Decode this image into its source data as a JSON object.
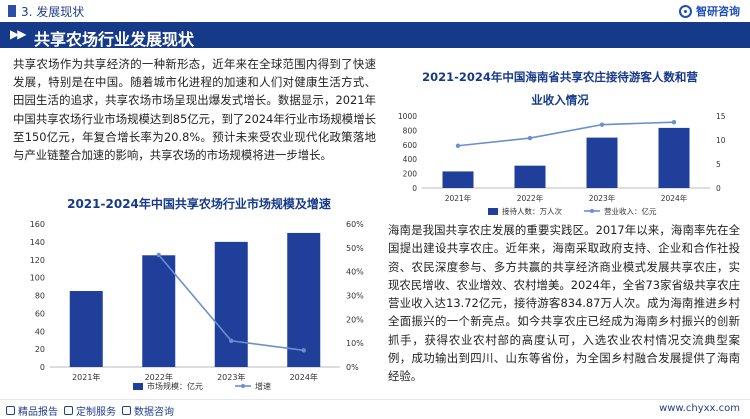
{
  "header": {
    "section_label": "3. 发展现状",
    "logo_text": "智研咨询",
    "banner_title": "共享农场行业发展现状",
    "banner_arrows": "▶▶"
  },
  "intro_text": "共享农场作为共享经济的一种新形态，近年来在全球范围内得到了快速发展，特别是在中国。随着城市化进程的加速和人们对健康生活方式、田园生活的追求，共享农场市场呈现出爆发式增长。数据显示，2021年中国共享农场行业市场规模达到85亿元，到了2024年行业市场规模增长至150亿元，年复合增长率为20.8%。预计未来受农业现代化政策落地与产业链整合加速的影响，共享农场的市场规模将进一步增长。",
  "hainan_text": "海南是我国共享农庄发展的重要实践区。2017年以来，海南率先在全国提出建设共享农庄。近年来，海南采取政府支持、企业和合作社投资、农民深度参与、多方共赢的共享经济商业模式发展共享农庄，实现农民增收、农业增效、农村增美。2024年，全省73家省级共享农庄营业收入达13.72亿元，接待游客834.87万人次。成为海南推进乡村全面振兴的一个新亮点。如今共享农庄已经成为海南乡村振兴的创新抓手，获得农业农村部的高度认可，入选农业农村情况交流典型案例，成功输出到四川、山东等省份，为全国乡村融合发展提供了海南经验。",
  "chart_data": [
    {
      "type": "bar",
      "title": "2021-2024年中国共享农场行业市场规模及增速",
      "categories": [
        "2021年",
        "2022年",
        "2023年",
        "2024年"
      ],
      "series": [
        {
          "name": "市场规模：亿元",
          "kind": "bar",
          "axis": "left",
          "values": [
            85,
            125,
            140,
            150
          ],
          "color": "#1f3f9a"
        },
        {
          "name": "增速",
          "kind": "line",
          "axis": "right",
          "values": [
            null,
            0.47,
            0.11,
            0.07
          ],
          "color": "#6a8fd1"
        }
      ],
      "ylim_left": [
        0,
        160
      ],
      "yticks_left": [
        "0",
        "20",
        "40",
        "60",
        "80",
        "100",
        "120",
        "140",
        "160"
      ],
      "ylim_right": [
        0,
        0.6
      ],
      "yticks_right": [
        "0%",
        "10%",
        "20%",
        "30%",
        "40%",
        "50%",
        "60%"
      ],
      "legend": "bottom"
    },
    {
      "type": "bar",
      "title": "2021-2024年中国海南省共享农庄接待游客人数和营业收入情况",
      "categories": [
        "2021年",
        "2022年",
        "2023年",
        "2024年"
      ],
      "series": [
        {
          "name": "接待人数：万人次",
          "kind": "bar",
          "axis": "left",
          "values": [
            230,
            310,
            700,
            835
          ],
          "color": "#1f3f9a"
        },
        {
          "name": "营业收入：亿元",
          "kind": "line",
          "axis": "right",
          "values": [
            8.8,
            10.4,
            13.2,
            13.72
          ],
          "color": "#6a8fd1"
        }
      ],
      "ylim_left": [
        0,
        1000
      ],
      "yticks_left": [
        "0",
        "200",
        "400",
        "600",
        "800",
        "1000"
      ],
      "ylim_right": [
        0,
        15
      ],
      "yticks_right": [
        "0",
        "5",
        "10",
        "15"
      ],
      "legend": "bottom"
    }
  ],
  "footer": {
    "links": [
      "精品报告",
      "定制服务",
      "数据咨询"
    ],
    "site": "www.chyxx.com"
  },
  "colors": {
    "brand": "#163a8a",
    "bar": "#1f3f9a",
    "line": "#6a8fd1"
  }
}
